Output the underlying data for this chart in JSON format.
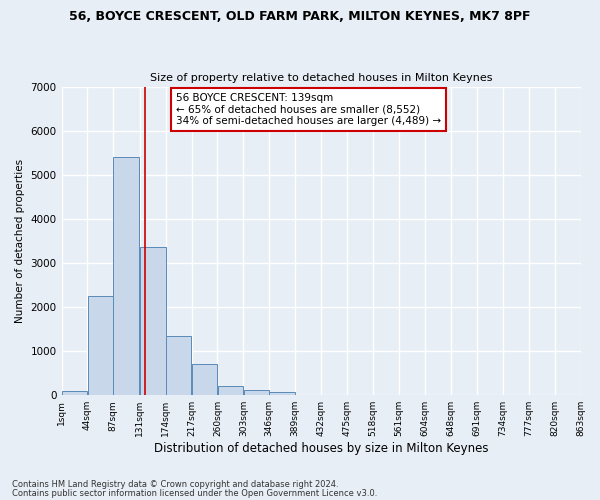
{
  "title1": "56, BOYCE CRESCENT, OLD FARM PARK, MILTON KEYNES, MK7 8PF",
  "title2": "Size of property relative to detached houses in Milton Keynes",
  "xlabel": "Distribution of detached houses by size in Milton Keynes",
  "ylabel": "Number of detached properties",
  "footnote1": "Contains HM Land Registry data © Crown copyright and database right 2024.",
  "footnote2": "Contains public sector information licensed under the Open Government Licence v3.0.",
  "annotation_line1": "56 BOYCE CRESCENT: 139sqm",
  "annotation_line2": "← 65% of detached houses are smaller (8,552)",
  "annotation_line3": "34% of semi-detached houses are larger (4,489) →",
  "bar_color": "#c8d8ea",
  "bar_edge_color": "#5a8ab8",
  "bar_left_edges": [
    1,
    44,
    87,
    131,
    174,
    217,
    260,
    303,
    346,
    389,
    432,
    475,
    518,
    561,
    604,
    648,
    691,
    734,
    777,
    820
  ],
  "bar_widths": [
    43,
    43,
    43,
    43,
    43,
    43,
    43,
    43,
    43,
    43,
    43,
    43,
    43,
    43,
    43,
    43,
    43,
    43,
    43,
    43
  ],
  "bar_heights": [
    100,
    2250,
    5400,
    3350,
    1350,
    700,
    220,
    120,
    70,
    0,
    0,
    0,
    0,
    0,
    0,
    0,
    0,
    0,
    0,
    0
  ],
  "tick_labels": [
    "1sqm",
    "44sqm",
    "87sqm",
    "131sqm",
    "174sqm",
    "217sqm",
    "260sqm",
    "303sqm",
    "346sqm",
    "389sqm",
    "432sqm",
    "475sqm",
    "518sqm",
    "561sqm",
    "604sqm",
    "648sqm",
    "691sqm",
    "734sqm",
    "777sqm",
    "820sqm",
    "863sqm"
  ],
  "ylim": [
    0,
    7000
  ],
  "yticks": [
    0,
    1000,
    2000,
    3000,
    4000,
    5000,
    6000,
    7000
  ],
  "bg_color": "#e8eef6",
  "ax_bg_color": "#e8eef6",
  "grid_color": "#ffffff",
  "vline_color": "#cc0000",
  "vline_x": 139,
  "annotation_box_color": "#ffffff",
  "annotation_box_edge": "#cc0000"
}
